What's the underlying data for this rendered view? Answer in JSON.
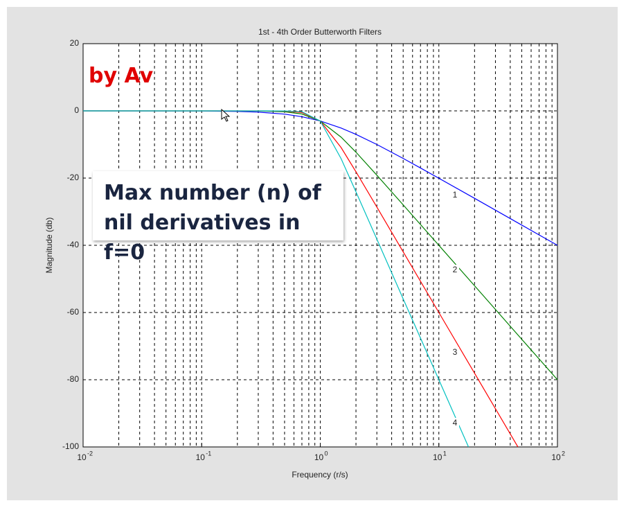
{
  "chart_data": {
    "type": "line",
    "title": "1st - 4th Order Butterworth Filters",
    "x_label": "Frequency (r/s)",
    "y_label": "Magnitude (db)",
    "log_x": true,
    "grid": true,
    "xlim": [
      0.01,
      100
    ],
    "ylim": [
      -100,
      20
    ],
    "xticks": [
      {
        "value": 0.01,
        "label": "10",
        "exponent": "-2"
      },
      {
        "value": 0.1,
        "label": "10",
        "exponent": "-1"
      },
      {
        "value": 1,
        "label": "10",
        "exponent": "0"
      },
      {
        "value": 10,
        "label": "10",
        "exponent": "1"
      },
      {
        "value": 100,
        "label": "10",
        "exponent": "2"
      }
    ],
    "x_minor_grid": [
      0.02,
      0.03,
      0.04,
      0.05,
      0.06,
      0.07,
      0.08,
      0.09,
      0.2,
      0.3,
      0.4,
      0.5,
      0.6,
      0.7,
      0.8,
      0.9,
      2,
      3,
      4,
      5,
      6,
      7,
      8,
      9,
      20,
      30,
      40,
      50,
      60,
      70,
      80,
      90
    ],
    "yticks": [
      -100,
      -80,
      -60,
      -40,
      -20,
      0,
      20
    ],
    "series": [
      {
        "name": "1",
        "color": "#0000ff",
        "x": [
          0.01,
          0.1,
          0.2,
          0.3,
          0.5,
          0.7,
          1,
          1.5,
          2,
          3,
          5,
          7,
          10,
          20,
          50,
          100
        ],
        "values": [
          0,
          -0.04,
          -0.17,
          -0.37,
          -0.97,
          -1.74,
          -3.01,
          -5.12,
          -6.99,
          -10,
          -14.15,
          -17.0,
          -20.04,
          -26.02,
          -33.98,
          -40
        ]
      },
      {
        "name": "2",
        "color": "#008000",
        "x": [
          0.01,
          0.1,
          0.2,
          0.3,
          0.5,
          0.7,
          1,
          1.5,
          2,
          3,
          5,
          7,
          10,
          20,
          50,
          100
        ],
        "values": [
          0,
          0,
          -0.01,
          -0.04,
          -0.26,
          -0.93,
          -3.01,
          -7.83,
          -12.3,
          -19.14,
          -27.97,
          -33.81,
          -40,
          -52.04,
          -67.96,
          -80
        ]
      },
      {
        "name": "3",
        "color": "#ff0000",
        "x": [
          0.01,
          0.1,
          0.3,
          0.5,
          0.7,
          1,
          1.5,
          2,
          3,
          5,
          7,
          10,
          20,
          30,
          46.4
        ],
        "values": [
          0,
          0,
          0,
          -0.07,
          -0.48,
          -3.01,
          -10.93,
          -18.13,
          -28.63,
          -41.94,
          -50.71,
          -60,
          -78.06,
          -88.63,
          -99.99
        ]
      },
      {
        "name": "4",
        "color": "#00c0c0",
        "x": [
          0.01,
          0.1,
          0.3,
          0.5,
          0.7,
          1,
          1.5,
          2,
          3,
          5,
          7,
          10,
          17.78
        ],
        "values": [
          0,
          0,
          0,
          -0.02,
          -0.24,
          -3.01,
          -14.25,
          -24.1,
          -38.17,
          -55.92,
          -67.6,
          -80,
          -99.99
        ]
      }
    ]
  },
  "overlay": {
    "watermark": "by Av",
    "callout": "Max number (n) of nil derivatives in f=0"
  }
}
